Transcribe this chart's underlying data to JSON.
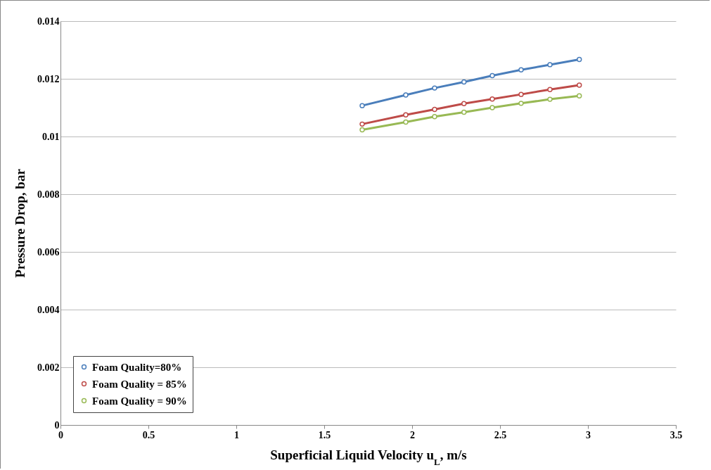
{
  "chart_data": {
    "type": "line",
    "xlabel": "Superficial  Liquid Velocity u$_{L}$, m/s",
    "ylabel": "Pressure Drop, bar",
    "x": [
      1.716,
      1.964,
      2.128,
      2.295,
      2.456,
      2.62,
      2.784,
      2.951
    ],
    "series": [
      {
        "name": "Foam Quality=80%",
        "color": "#4a7ebb",
        "values": [
          0.01107,
          0.01144,
          0.01168,
          0.01189,
          0.01211,
          0.01231,
          0.01249,
          0.01267
        ]
      },
      {
        "name": "Foam Quality = 85%",
        "color": "#be4b48",
        "values": [
          0.01043,
          0.01075,
          0.01094,
          0.01114,
          0.0113,
          0.01146,
          0.01163,
          0.01178
        ]
      },
      {
        "name": "Foam Quality = 90%",
        "color": "#98b954",
        "values": [
          0.01023,
          0.0105,
          0.01069,
          0.01084,
          0.011,
          0.01115,
          0.01129,
          0.01141
        ]
      }
    ],
    "xlim": [
      0,
      3.5
    ],
    "xticks": [
      0,
      0.5,
      1,
      1.5,
      2,
      2.5,
      3,
      3.5
    ],
    "ylim": [
      0,
      0.014
    ],
    "yticks": [
      0,
      0.002,
      0.004,
      0.006,
      0.008,
      0.01,
      0.012,
      0.014
    ],
    "grid": "y",
    "legend": "bottom left",
    "marker": "circle",
    "line_style": "solid"
  }
}
